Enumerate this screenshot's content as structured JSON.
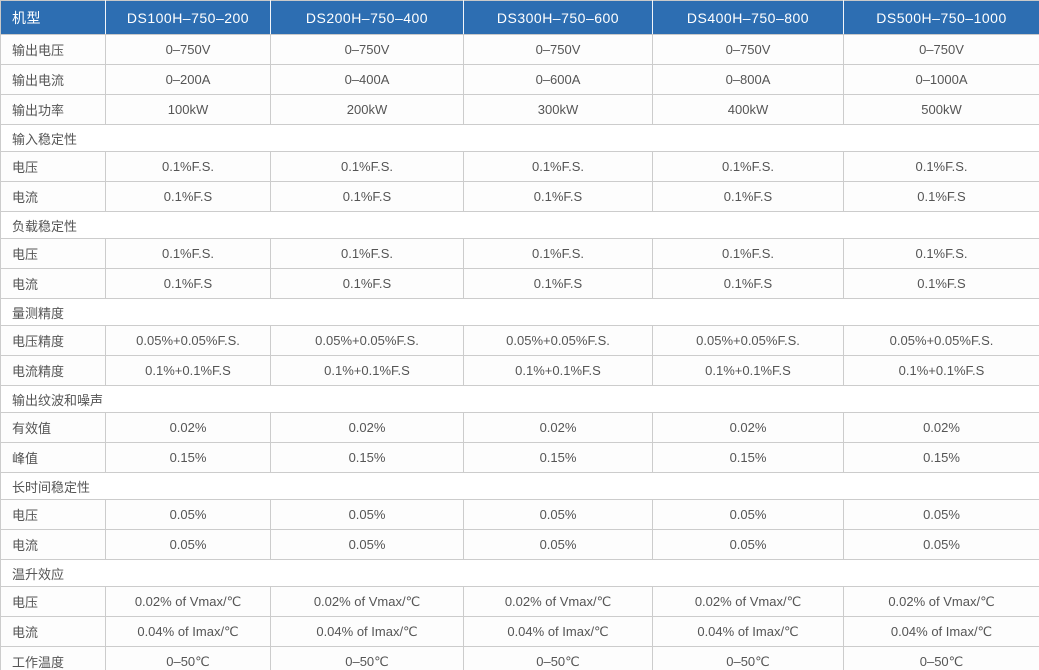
{
  "accent_color": "#2d6eb2",
  "border_color": "#cccccc",
  "text_color": "#555555",
  "table": {
    "header": [
      "机型",
      "DS100H–750–200",
      "DS200H–750–400",
      "DS300H–750–600",
      "DS400H–750–800",
      "DS500H–750–1000"
    ],
    "rows": [
      {
        "type": "data",
        "label": "输出电压",
        "values": [
          "0–750V",
          "0–750V",
          "0–750V",
          "0–750V",
          "0–750V"
        ]
      },
      {
        "type": "data",
        "label": "输出电流",
        "values": [
          "0–200A",
          "0–400A",
          "0–600A",
          "0–800A",
          "0–1000A"
        ]
      },
      {
        "type": "data",
        "label": "输出功率",
        "values": [
          "100kW",
          "200kW",
          "300kW",
          "400kW",
          "500kW"
        ]
      },
      {
        "type": "section",
        "label": "输入稳定性"
      },
      {
        "type": "data",
        "label": "电压",
        "values": [
          "0.1%F.S.",
          "0.1%F.S.",
          "0.1%F.S.",
          "0.1%F.S.",
          "0.1%F.S."
        ]
      },
      {
        "type": "data",
        "label": "电流",
        "values": [
          "0.1%F.S",
          "0.1%F.S",
          "0.1%F.S",
          "0.1%F.S",
          "0.1%F.S"
        ]
      },
      {
        "type": "section",
        "label": "负载稳定性"
      },
      {
        "type": "data",
        "label": "电压",
        "values": [
          "0.1%F.S.",
          "0.1%F.S.",
          "0.1%F.S.",
          "0.1%F.S.",
          "0.1%F.S."
        ]
      },
      {
        "type": "data",
        "label": "电流",
        "values": [
          "0.1%F.S",
          "0.1%F.S",
          "0.1%F.S",
          "0.1%F.S",
          "0.1%F.S"
        ]
      },
      {
        "type": "section",
        "label": "量测精度"
      },
      {
        "type": "data",
        "label": "电压精度",
        "values": [
          "0.05%+0.05%F.S.",
          "0.05%+0.05%F.S.",
          "0.05%+0.05%F.S.",
          "0.05%+0.05%F.S.",
          "0.05%+0.05%F.S."
        ]
      },
      {
        "type": "data",
        "label": "电流精度",
        "values": [
          "0.1%+0.1%F.S",
          "0.1%+0.1%F.S",
          "0.1%+0.1%F.S",
          "0.1%+0.1%F.S",
          "0.1%+0.1%F.S"
        ]
      },
      {
        "type": "section",
        "label": "输出纹波和噪声"
      },
      {
        "type": "data",
        "label": "有效值",
        "values": [
          "0.02%",
          "0.02%",
          "0.02%",
          "0.02%",
          "0.02%"
        ]
      },
      {
        "type": "data",
        "label": "峰值",
        "values": [
          "0.15%",
          "0.15%",
          "0.15%",
          "0.15%",
          "0.15%"
        ]
      },
      {
        "type": "section",
        "label": "长时间稳定性"
      },
      {
        "type": "data",
        "label": "电压",
        "values": [
          "0.05%",
          "0.05%",
          "0.05%",
          "0.05%",
          "0.05%"
        ]
      },
      {
        "type": "data",
        "label": "电流",
        "values": [
          "0.05%",
          "0.05%",
          "0.05%",
          "0.05%",
          "0.05%"
        ]
      },
      {
        "type": "section",
        "label": "温升效应"
      },
      {
        "type": "data",
        "label": "电压",
        "values": [
          "0.02% of Vmax/℃",
          "0.02% of Vmax/℃",
          "0.02% of Vmax/℃",
          "0.02% of Vmax/℃",
          "0.02% of Vmax/℃"
        ]
      },
      {
        "type": "data",
        "label": "电流",
        "values": [
          "0.04% of Imax/℃",
          "0.04% of Imax/℃",
          "0.04% of Imax/℃",
          "0.04% of Imax/℃",
          "0.04% of Imax/℃"
        ]
      },
      {
        "type": "data",
        "label": "工作温度",
        "values": [
          "0–50℃",
          "0–50℃",
          "0–50℃",
          "0–50℃",
          "0–50℃"
        ]
      }
    ]
  }
}
